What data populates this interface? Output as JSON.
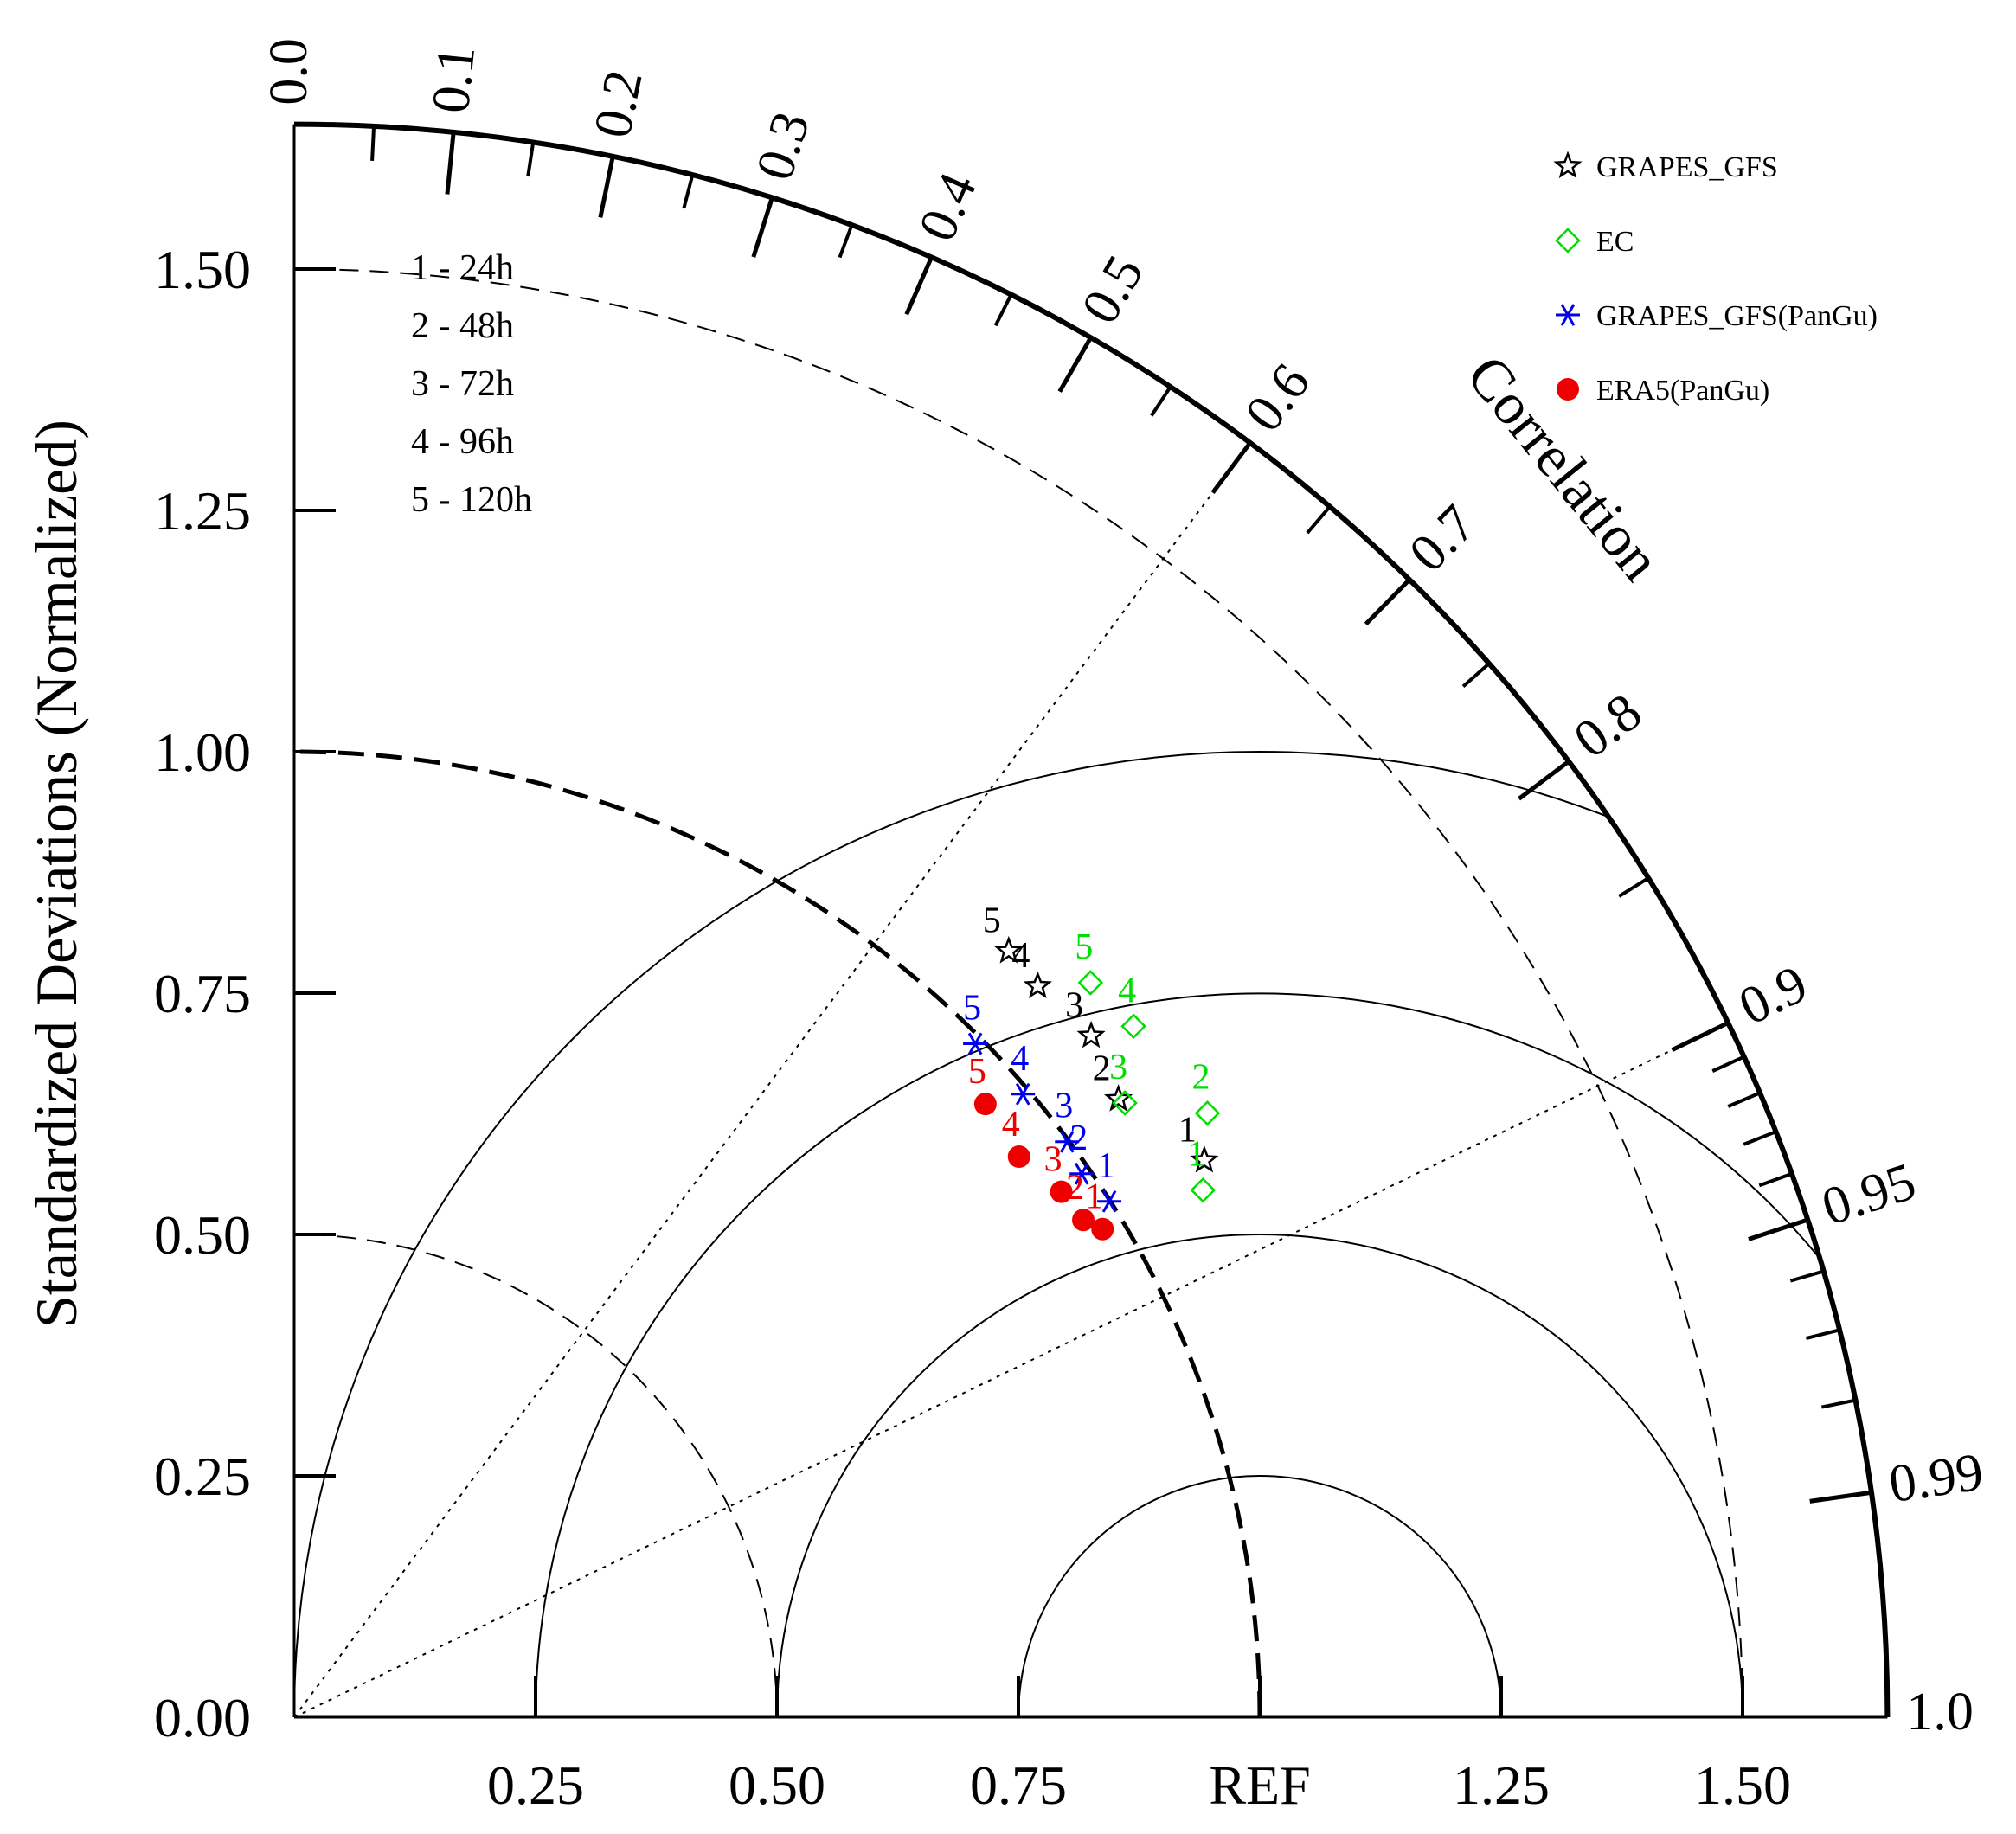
{
  "chart_data": {
    "type": "taylor",
    "ylabel": "Standardized Deviations (Normalized)",
    "corr_title": "Correlation",
    "ref_label": "REF",
    "std_range": [
      0,
      1.65
    ],
    "y_ticks": [
      "0.00",
      "0.25",
      "0.50",
      "0.75",
      "1.00",
      "1.25",
      "1.50"
    ],
    "x_ticks": [
      "0.25",
      "0.50",
      "0.75",
      "REF",
      "1.25",
      "1.50"
    ],
    "correlation_ticks": [
      "0.0",
      "0.1",
      "0.2",
      "0.3",
      "0.4",
      "0.5",
      "0.6",
      "0.7",
      "0.8",
      "0.9",
      "0.95",
      "0.99",
      "1.0"
    ],
    "forecast_key": [
      "1 - 24h",
      "2 - 48h",
      "3 - 72h",
      "4 - 96h",
      "5 - 120h"
    ],
    "series": [
      {
        "name": "GRAPES_GFS",
        "marker": "star",
        "color": "#000000",
        "points": [
          {
            "id": "1",
            "std": 1.105,
            "corr": 0.853
          },
          {
            "id": "2",
            "std": 1.067,
            "corr": 0.8
          },
          {
            "id": "3",
            "std": 1.086,
            "corr": 0.76
          },
          {
            "id": "4",
            "std": 1.08,
            "corr": 0.713
          },
          {
            "id": "5",
            "std": 1.085,
            "corr": 0.682
          }
        ]
      },
      {
        "name": "EC",
        "marker": "diamond",
        "color": "#00dd00",
        "points": [
          {
            "id": "1",
            "std": 1.088,
            "corr": 0.865
          },
          {
            "id": "2",
            "std": 1.134,
            "corr": 0.834
          },
          {
            "id": "3",
            "std": 1.07,
            "corr": 0.804
          },
          {
            "id": "4",
            "std": 1.126,
            "corr": 0.772
          },
          {
            "id": "5",
            "std": 1.122,
            "corr": 0.735
          }
        ]
      },
      {
        "name": "GRAPES_GFS(PanGu)",
        "marker": "asterisk",
        "color": "#0000ee",
        "points": [
          {
            "id": "1",
            "std": 0.999,
            "corr": 0.845
          },
          {
            "id": "2",
            "std": 0.991,
            "corr": 0.823
          },
          {
            "id": "3",
            "std": 0.998,
            "corr": 0.802
          },
          {
            "id": "4",
            "std": 0.993,
            "corr": 0.76
          },
          {
            "id": "5",
            "std": 0.992,
            "corr": 0.711
          }
        ]
      },
      {
        "name": "ERA5(PanGu)",
        "marker": "dot",
        "color": "#ee0000",
        "points": [
          {
            "id": "1",
            "std": 0.978,
            "corr": 0.856
          },
          {
            "id": "2",
            "std": 0.966,
            "corr": 0.846
          },
          {
            "id": "3",
            "std": 0.963,
            "corr": 0.825
          },
          {
            "id": "4",
            "std": 0.949,
            "corr": 0.791
          },
          {
            "id": "5",
            "std": 0.957,
            "corr": 0.748
          }
        ]
      }
    ]
  }
}
